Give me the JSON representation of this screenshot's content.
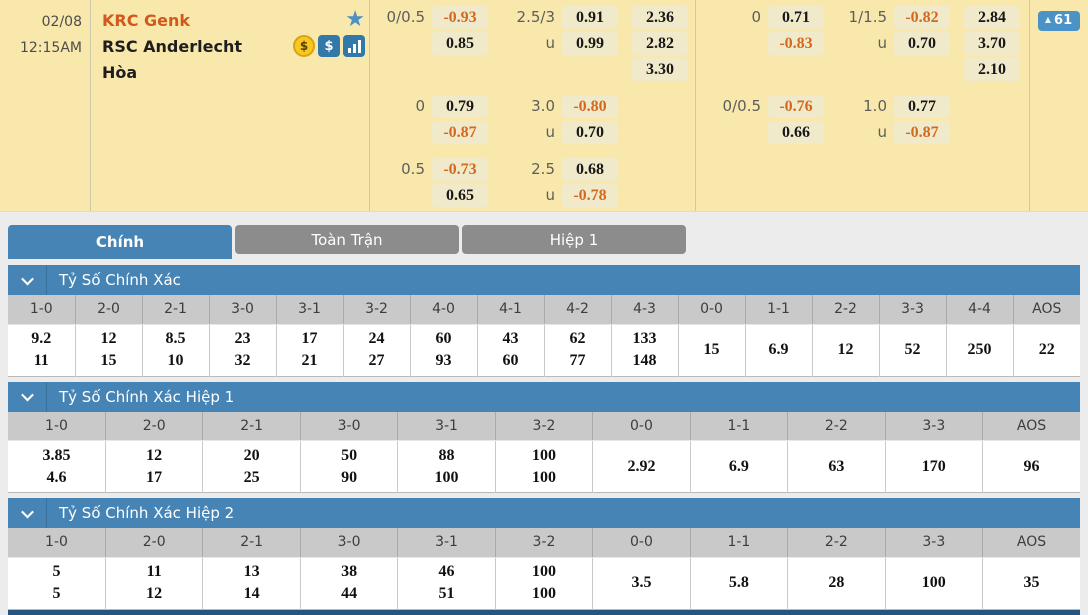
{
  "match": {
    "date": "02/08",
    "time": "12:15AM",
    "home_team": "KRC Genk",
    "away_team": "RSC Anderlecht",
    "draw_label": "Hòa",
    "badge_arrow": "▲",
    "badge_count": "61"
  },
  "odds": {
    "full_time": {
      "groups": [
        {
          "hdp_line": "0/0.5",
          "hdp": [
            "-0.93",
            "0.85"
          ],
          "ou_line": "2.5/3",
          "u_label": "u",
          "ou": [
            "0.91",
            "0.99"
          ],
          "oneXtwo": [
            "2.36",
            "2.82",
            "3.30"
          ]
        },
        {
          "hdp_line": "0",
          "hdp": [
            "0.79",
            "-0.87"
          ],
          "ou_line": "3.0",
          "u_label": "u",
          "ou": [
            "-0.80",
            "0.70"
          ]
        },
        {
          "hdp_line": "0.5",
          "hdp": [
            "-0.73",
            "0.65"
          ],
          "ou_line": "2.5",
          "u_label": "u",
          "ou": [
            "0.68",
            "-0.78"
          ]
        }
      ]
    },
    "first_half": {
      "groups": [
        {
          "hdp_line": "0",
          "hdp": [
            "0.71",
            "-0.83"
          ],
          "ou_line": "1/1.5",
          "u_label": "u",
          "ou": [
            "-0.82",
            "0.70"
          ],
          "oneXtwo": [
            "2.84",
            "3.70",
            "2.10"
          ]
        },
        {
          "hdp_line": "0/0.5",
          "hdp": [
            "-0.76",
            "0.66"
          ],
          "ou_line": "1.0",
          "u_label": "u",
          "ou": [
            "0.77",
            "-0.87"
          ]
        }
      ]
    }
  },
  "tabs": [
    {
      "label": "Chính",
      "active": true
    },
    {
      "label": "Toàn Trận",
      "active": false
    },
    {
      "label": "Hiệp 1",
      "active": false
    }
  ],
  "sections": [
    {
      "title": "Tỷ Số Chính Xác",
      "columns": [
        "1-0",
        "2-0",
        "2-1",
        "3-0",
        "3-1",
        "3-2",
        "4-0",
        "4-1",
        "4-2",
        "4-3",
        "0-0",
        "1-1",
        "2-2",
        "3-3",
        "4-4",
        "AOS"
      ],
      "split_count": 10,
      "top": [
        "9.2",
        "12",
        "8.5",
        "23",
        "17",
        "24",
        "60",
        "43",
        "62",
        "133"
      ],
      "bottom": [
        "11",
        "15",
        "10",
        "32",
        "21",
        "27",
        "93",
        "60",
        "77",
        "148"
      ],
      "single": [
        "15",
        "6.9",
        "12",
        "52",
        "250",
        "22"
      ]
    },
    {
      "title": "Tỷ Số Chính Xác Hiệp 1",
      "columns": [
        "1-0",
        "2-0",
        "2-1",
        "3-0",
        "3-1",
        "3-2",
        "0-0",
        "1-1",
        "2-2",
        "3-3",
        "AOS"
      ],
      "split_count": 6,
      "top": [
        "3.85",
        "12",
        "20",
        "50",
        "88",
        "100"
      ],
      "bottom": [
        "4.6",
        "17",
        "25",
        "90",
        "100",
        "100"
      ],
      "single": [
        "2.92",
        "6.9",
        "63",
        "170",
        "96"
      ]
    },
    {
      "title": "Tỷ Số Chính Xác Hiệp 2",
      "columns": [
        "1-0",
        "2-0",
        "2-1",
        "3-0",
        "3-1",
        "3-2",
        "0-0",
        "1-1",
        "2-2",
        "3-3",
        "AOS"
      ],
      "split_count": 6,
      "top": [
        "5",
        "11",
        "13",
        "38",
        "46",
        "100"
      ],
      "bottom": [
        "5",
        "12",
        "14",
        "44",
        "51",
        "100"
      ],
      "single": [
        "3.5",
        "5.8",
        "28",
        "100",
        "35"
      ]
    }
  ],
  "colors": {
    "panel_yellow": "#F9E8AC",
    "chip_yellow": "#F1EACA",
    "negative_odds": "#D2691E",
    "accent_blue": "#4584B4",
    "badge_blue": "#4B92C6",
    "tab_gray": "#8C8C8C",
    "table_header_gray": "#C9C9C9",
    "next_section_navy": "#265581"
  }
}
